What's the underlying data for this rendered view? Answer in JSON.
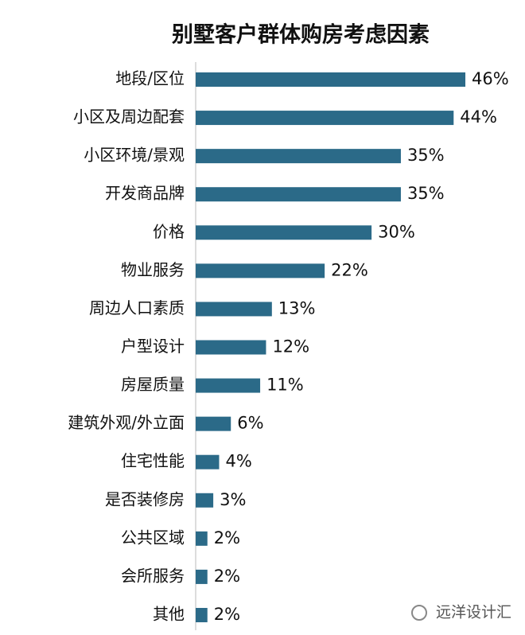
{
  "chart_data": {
    "type": "barh",
    "title": "别墅客户群体购房考虑因素",
    "categories": [
      "地段/区位",
      "小区及周边配套",
      "小区环境/景观",
      "开发商品牌",
      "价格",
      "物业服务",
      "周边人口素质",
      "户型设计",
      "房屋质量",
      "建筑外观/外立面",
      "住宅性能",
      "是否装修房",
      "公共区域",
      "会所服务",
      "其他"
    ],
    "values": [
      46,
      44,
      35,
      35,
      30,
      22,
      13,
      12,
      11,
      6,
      4,
      3,
      2,
      2,
      2
    ],
    "value_labels": [
      "46%",
      "44%",
      "35%",
      "35%",
      "30%",
      "22%",
      "13%",
      "12%",
      "11%",
      "6%",
      "4%",
      "3%",
      "2%",
      "2%",
      "2%"
    ],
    "color": "#2b6a88",
    "annotations": [
      "远洋设计汇"
    ]
  }
}
